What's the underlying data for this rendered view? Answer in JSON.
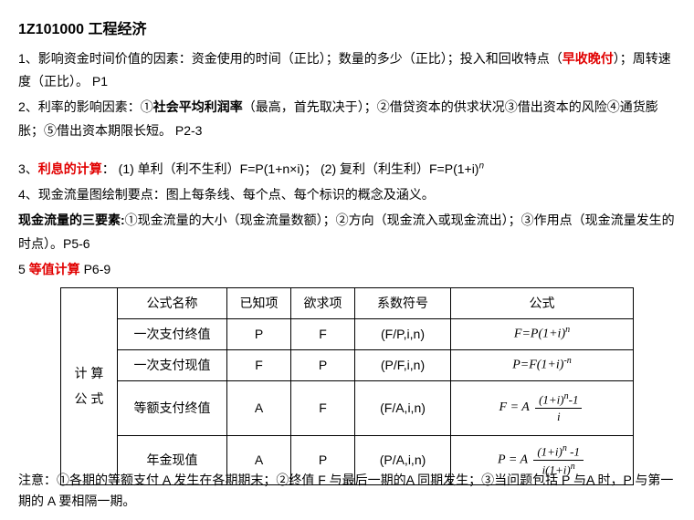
{
  "title": "1Z101000 工程经济",
  "line1a": "1、影响资金时间价值的因素：资金使用的时间（正比）；数量的多少（正比）；投入和回收特点（",
  "line1_red": "早收晚付",
  "line1b": "）；周转速度（正比）。 P1",
  "line2a": "2、利率的影响因素：①",
  "line2_b": "社会平均利润率",
  "line2b": "（最高，首先取决于）；②借贷资本的供求状况③借出资本的风险④通货膨胀；⑤借出资本期限长短。  P2-3",
  "line3a": "3、",
  "line3_red": "利息的计算",
  "line3b": "：  (1) 单利（利不生利）F=P(1+n×i)；  (2) 复利（利生利）F=P(1+i)",
  "line4": "4、现金流量图绘制要点：图上每条线、每个点、每个标识的概念及涵义。",
  "line4b_a": "现金流量的三要素:",
  "line4b_b": "①现金流量的大小（现金流量数额）；②方向（现金流入或现金流出）；③作用点（现金流量发生的时点）。P5-6",
  "line5a": "5 ",
  "line5_red": "等值计算",
  "line5b": " P6-9",
  "table": {
    "widths": [
      62,
      120,
      70,
      70,
      105,
      200
    ],
    "heights": [
      34,
      34,
      34,
      60,
      54
    ],
    "rowhead": "计 算\n公 式",
    "h1": "公式名称",
    "h2": "已知项",
    "h3": "欲求项",
    "h4": "系数符号",
    "h5": "公式",
    "r1": {
      "c1": "一次支付终值",
      "c2": "P",
      "c3": "F",
      "c4": "(F/P,i,n)"
    },
    "r2": {
      "c1": "一次支付现值",
      "c2": "F",
      "c3": "P",
      "c4": "(P/F,i,n)"
    },
    "r3": {
      "c1": "等额支付终值",
      "c2": "A",
      "c3": "F",
      "c4": "(F/A,i,n)"
    },
    "r4": {
      "c1": "年金现值",
      "c2": "A",
      "c3": "P",
      "c4": "(P/A,i,n)"
    },
    "f_r1_a": "F=P(1+i)",
    "f_r1_sup": "n",
    "f_r2_a": "P=F(1+i)",
    "f_r2_sup": "-n",
    "f_r3_a": "F = A",
    "f_r3_num_a": "(1+i)",
    "f_r3_num_sup": "n",
    "f_r3_num_b": "-1",
    "f_r3_den": "i",
    "f_r4_a": "P = A",
    "f_r4_num_a": "(1+i)",
    "f_r4_num_sup": "n",
    "f_r4_num_b": " -1",
    "f_r4_den_a": "i(1+i)",
    "f_r4_den_sup": "n"
  },
  "note": "注意：①各期的等额支付 A 发生在各期期末；②终值 F 与最后一期的A 同期发生；③当问题包括 P 与A 时，P 与第一期的 A 要相隔一期。",
  "colors": {
    "red": "#e10000",
    "border": "#000000",
    "bg": "#ffffff"
  }
}
